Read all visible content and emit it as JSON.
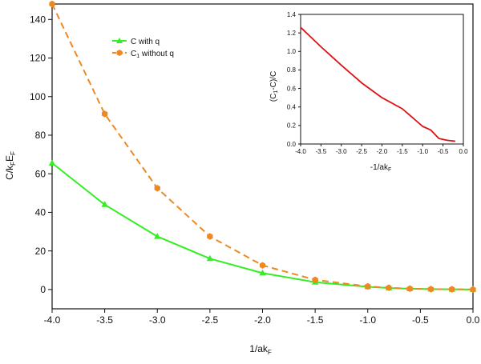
{
  "colors": {
    "axis": "#111111",
    "green": "#33ee22",
    "orange": "#ee8822",
    "red": "#dd1111"
  },
  "chart_data": [
    {
      "type": "line",
      "xlabel": "1/ak",
      "xlabel_sub": "F",
      "ylabel_parts": [
        "C/k",
        "F",
        "E",
        "F"
      ],
      "xlim": [
        -4.0,
        0.0
      ],
      "ylim": [
        -10,
        148
      ],
      "x_ticks": [
        "-4.0",
        "-3.5",
        "-3.0",
        "-2.5",
        "-2.0",
        "-1.5",
        "-1.0",
        "-0.5",
        "0.0"
      ],
      "y_ticks": [
        "0",
        "20",
        "40",
        "60",
        "80",
        "100",
        "120",
        "140"
      ],
      "grid": false,
      "legend_position": "top-left",
      "series": [
        {
          "name": "C with q",
          "marker": "triangle",
          "line_style": "solid",
          "color": "#33ee22",
          "x": [
            -4.0,
            -3.5,
            -3.0,
            -2.5,
            -2.0,
            -1.5,
            -1.0,
            -0.8,
            -0.6,
            -0.4,
            -0.2,
            0.0
          ],
          "y": [
            65.5,
            44.0,
            27.5,
            16.0,
            8.5,
            3.8,
            1.4,
            0.8,
            0.4,
            0.2,
            0.1,
            0.0
          ]
        },
        {
          "name": "C",
          "name_sub": "1",
          "name_suffix": " without q",
          "marker": "hexagon",
          "line_style": "dashed",
          "color": "#ee8822",
          "x": [
            -4.0,
            -3.5,
            -3.0,
            -2.5,
            -2.0,
            -1.5,
            -1.0,
            -0.8,
            -0.6,
            -0.4,
            -0.2,
            0.0
          ],
          "y": [
            148.0,
            91.0,
            52.5,
            27.5,
            12.5,
            5.0,
            1.6,
            0.9,
            0.45,
            0.2,
            0.1,
            0.0
          ]
        }
      ]
    },
    {
      "type": "line",
      "position": "inset-top-right",
      "xlabel": "-1/ak",
      "xlabel_sub": "F",
      "ylabel_parts": [
        "(C",
        "1",
        "-C)/C"
      ],
      "xlim": [
        -4.0,
        0.0
      ],
      "ylim": [
        0.0,
        1.4
      ],
      "x_ticks": [
        "-4.0",
        "-3.5",
        "-3.0",
        "-2.5",
        "-2.0",
        "-1.5",
        "-1.0",
        "-0.5",
        "0.0"
      ],
      "y_ticks": [
        "0.0",
        "0.2",
        "0.4",
        "0.6",
        "0.8",
        "1.0",
        "1.2",
        "1.4"
      ],
      "grid": false,
      "series": [
        {
          "color": "#dd1111",
          "x": [
            -4.0,
            -3.5,
            -3.0,
            -2.5,
            -2.0,
            -1.5,
            -1.0,
            -0.8,
            -0.6,
            -0.4,
            -0.2
          ],
          "y": [
            1.26,
            1.05,
            0.85,
            0.66,
            0.5,
            0.38,
            0.19,
            0.15,
            0.06,
            0.04,
            0.03
          ]
        }
      ]
    }
  ]
}
